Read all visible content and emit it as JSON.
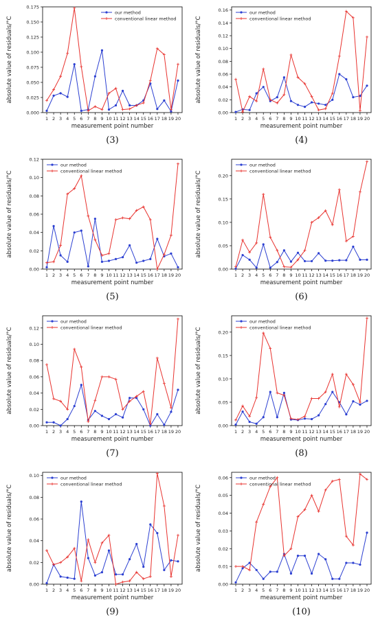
{
  "colors": {
    "our": "#2b3fd1",
    "conv": "#e8322e"
  },
  "chart_data": [
    {
      "type": "line",
      "caption": "(3)",
      "xlabel": "measurement point number",
      "ylabel": "absolute value of residuals/°C",
      "x": [
        1,
        2,
        3,
        4,
        5,
        6,
        7,
        8,
        9,
        10,
        11,
        12,
        13,
        14,
        15,
        16,
        17,
        18,
        19,
        20
      ],
      "ylim": [
        0,
        0.175
      ],
      "yticks": [
        0.0,
        0.025,
        0.05,
        0.075,
        0.1,
        0.125,
        0.15,
        0.175
      ],
      "ytick_labels": [
        "0.000",
        "0.025",
        "0.050",
        "0.075",
        "0.100",
        "0.125",
        "0.150",
        "0.175"
      ],
      "legend": "top-right",
      "series": [
        {
          "name": "our method",
          "key": "our",
          "marker": "circle",
          "values": [
            0.003,
            0.028,
            0.032,
            0.026,
            0.08,
            0.003,
            0.005,
            0.06,
            0.103,
            0.005,
            0.012,
            0.036,
            0.012,
            0.012,
            0.02,
            0.048,
            0.006,
            0.02,
            0.002,
            0.053
          ]
        },
        {
          "name": "conventional linear method",
          "key": "conv",
          "marker": "plus",
          "values": [
            0.02,
            0.038,
            0.06,
            0.098,
            0.173,
            0.076,
            0.003,
            0.01,
            0.005,
            0.032,
            0.04,
            0.005,
            0.006,
            0.012,
            0.016,
            0.053,
            0.106,
            0.096,
            0.005,
            0.08
          ]
        }
      ]
    },
    {
      "type": "line",
      "caption": "(4)",
      "xlabel": "measurement point number",
      "ylabel": "absolute value of residuals/°C",
      "x": [
        1,
        2,
        3,
        4,
        5,
        6,
        7,
        8,
        9,
        10,
        11,
        12,
        13,
        14,
        15,
        16,
        17,
        18,
        19,
        20
      ],
      "ylim": [
        0,
        0.165
      ],
      "yticks": [
        0.0,
        0.02,
        0.04,
        0.06,
        0.08,
        0.1,
        0.12,
        0.14,
        0.16
      ],
      "ytick_labels": [
        "0.00",
        "0.02",
        "0.04",
        "0.06",
        "0.08",
        "0.10",
        "0.12",
        "0.14",
        "0.16"
      ],
      "legend": "top-left",
      "series": [
        {
          "name": "our method",
          "key": "our",
          "marker": "circle",
          "values": [
            0.001,
            0.005,
            0.004,
            0.03,
            0.04,
            0.018,
            0.024,
            0.055,
            0.018,
            0.012,
            0.009,
            0.016,
            0.014,
            0.012,
            0.02,
            0.06,
            0.052,
            0.024,
            0.026,
            0.042
          ]
        },
        {
          "name": "conventional linear method",
          "key": "conv",
          "marker": "plus",
          "values": [
            0.052,
            0.001,
            0.025,
            0.018,
            0.068,
            0.02,
            0.015,
            0.028,
            0.09,
            0.055,
            0.045,
            0.025,
            0.004,
            0.006,
            0.03,
            0.088,
            0.158,
            0.148,
            0.003,
            0.118
          ]
        }
      ]
    },
    {
      "type": "line",
      "caption": "(5)",
      "xlabel": "measurement point number",
      "ylabel": "absolute value of residuals/°C",
      "x": [
        1,
        2,
        3,
        4,
        5,
        6,
        7,
        8,
        9,
        10,
        11,
        12,
        13,
        14,
        15,
        16,
        17,
        18,
        19,
        20
      ],
      "ylim": [
        0,
        0.12
      ],
      "yticks": [
        0.0,
        0.02,
        0.04,
        0.06,
        0.08,
        0.1,
        0.12
      ],
      "ytick_labels": [
        "0.00",
        "0.02",
        "0.04",
        "0.06",
        "0.08",
        "0.10",
        "0.12"
      ],
      "legend": "top-left",
      "series": [
        {
          "name": "our method",
          "key": "our",
          "marker": "circle",
          "values": [
            0.002,
            0.047,
            0.015,
            0.008,
            0.04,
            0.042,
            0.003,
            0.055,
            0.008,
            0.009,
            0.011,
            0.013,
            0.026,
            0.007,
            0.009,
            0.011,
            0.033,
            0.014,
            0.017,
            0.002
          ]
        },
        {
          "name": "conventional linear method",
          "key": "conv",
          "marker": "plus",
          "values": [
            0.007,
            0.008,
            0.026,
            0.082,
            0.088,
            0.102,
            0.058,
            0.032,
            0.015,
            0.017,
            0.054,
            0.056,
            0.055,
            0.064,
            0.068,
            0.054,
            0.0,
            0.016,
            0.037,
            0.115
          ]
        }
      ]
    },
    {
      "type": "line",
      "caption": "(6)",
      "xlabel": "measurement point number",
      "ylabel": "absolute value of residuals/°C",
      "x": [
        1,
        2,
        3,
        4,
        5,
        6,
        7,
        8,
        9,
        10,
        11,
        12,
        13,
        14,
        15,
        16,
        17,
        18,
        19,
        20
      ],
      "ylim": [
        0,
        0.235
      ],
      "yticks": [
        0.0,
        0.05,
        0.1,
        0.15,
        0.2
      ],
      "ytick_labels": [
        "0.00",
        "0.05",
        "0.10",
        "0.15",
        "0.20"
      ],
      "legend": "top-left",
      "series": [
        {
          "name": "our method",
          "key": "our",
          "marker": "circle",
          "values": [
            0.001,
            0.03,
            0.02,
            0.003,
            0.053,
            0.003,
            0.015,
            0.04,
            0.016,
            0.035,
            0.017,
            0.017,
            0.034,
            0.018,
            0.018,
            0.019,
            0.019,
            0.048,
            0.02,
            0.02
          ]
        },
        {
          "name": "conventional linear method",
          "key": "conv",
          "marker": "plus",
          "values": [
            0.005,
            0.062,
            0.036,
            0.056,
            0.16,
            0.068,
            0.04,
            0.005,
            0.004,
            0.02,
            0.04,
            0.1,
            0.11,
            0.125,
            0.095,
            0.17,
            0.06,
            0.07,
            0.165,
            0.23
          ]
        }
      ]
    },
    {
      "type": "line",
      "caption": "(7)",
      "xlabel": "measurement point number",
      "ylabel": "absolute value of residuals/°C",
      "x": [
        1,
        2,
        3,
        4,
        5,
        6,
        7,
        8,
        9,
        10,
        11,
        12,
        13,
        14,
        15,
        16,
        17,
        18,
        19,
        20
      ],
      "ylim": [
        0,
        0.135
      ],
      "yticks": [
        0.0,
        0.02,
        0.04,
        0.06,
        0.08,
        0.1,
        0.12
      ],
      "ytick_labels": [
        "0.00",
        "0.02",
        "0.04",
        "0.06",
        "0.08",
        "0.10",
        "0.12"
      ],
      "legend": "top-left",
      "series": [
        {
          "name": "our method",
          "key": "our",
          "marker": "circle",
          "values": [
            0.004,
            0.004,
            0.0,
            0.008,
            0.024,
            0.05,
            0.007,
            0.018,
            0.012,
            0.008,
            0.014,
            0.01,
            0.034,
            0.034,
            0.02,
            0.0,
            0.014,
            0.001,
            0.017,
            0.044
          ]
        },
        {
          "name": "conventional linear method",
          "key": "conv",
          "marker": "plus",
          "values": [
            0.075,
            0.033,
            0.03,
            0.02,
            0.094,
            0.072,
            0.005,
            0.031,
            0.06,
            0.06,
            0.057,
            0.02,
            0.03,
            0.036,
            0.042,
            0.002,
            0.083,
            0.052,
            0.022,
            0.131
          ]
        }
      ]
    },
    {
      "type": "line",
      "caption": "(8)",
      "xlabel": "measurement point number",
      "ylabel": "absolute value of residuals/°C",
      "x": [
        1,
        2,
        3,
        4,
        5,
        6,
        7,
        8,
        9,
        10,
        11,
        12,
        13,
        14,
        15,
        16,
        17,
        18,
        19,
        20
      ],
      "ylim": [
        0,
        0.235
      ],
      "yticks": [
        0.0,
        0.05,
        0.1,
        0.15,
        0.2
      ],
      "ytick_labels": [
        "0.00",
        "0.05",
        "0.10",
        "0.15",
        "0.20"
      ],
      "legend": "top-left",
      "series": [
        {
          "name": "our method",
          "key": "our",
          "marker": "circle",
          "values": [
            0.002,
            0.03,
            0.008,
            0.004,
            0.018,
            0.072,
            0.018,
            0.07,
            0.013,
            0.012,
            0.015,
            0.014,
            0.022,
            0.046,
            0.072,
            0.05,
            0.024,
            0.052,
            0.045,
            0.053
          ]
        },
        {
          "name": "conventional linear method",
          "key": "conv",
          "marker": "plus",
          "values": [
            0.012,
            0.042,
            0.02,
            0.06,
            0.198,
            0.165,
            0.07,
            0.065,
            0.015,
            0.013,
            0.02,
            0.058,
            0.058,
            0.072,
            0.11,
            0.04,
            0.11,
            0.088,
            0.05,
            0.23
          ]
        }
      ]
    },
    {
      "type": "line",
      "caption": "(9)",
      "xlabel": "measurement point number",
      "ylabel": "absolute value of residuals/°C",
      "x": [
        1,
        2,
        3,
        4,
        5,
        6,
        7,
        8,
        9,
        10,
        11,
        12,
        13,
        14,
        15,
        16,
        17,
        18,
        19,
        20
      ],
      "ylim": [
        0,
        0.103
      ],
      "yticks": [
        0.0,
        0.02,
        0.04,
        0.06,
        0.08,
        0.1
      ],
      "ytick_labels": [
        "0.00",
        "0.02",
        "0.04",
        "0.06",
        "0.08",
        "0.10"
      ],
      "legend": "top-left",
      "series": [
        {
          "name": "our method",
          "key": "our",
          "marker": "circle",
          "values": [
            0.001,
            0.018,
            0.007,
            0.006,
            0.005,
            0.076,
            0.024,
            0.008,
            0.011,
            0.031,
            0.009,
            0.009,
            0.023,
            0.037,
            0.016,
            0.055,
            0.047,
            0.013,
            0.022,
            0.021
          ]
        },
        {
          "name": "conventional linear method",
          "key": "conv",
          "marker": "plus",
          "values": [
            0.031,
            0.018,
            0.02,
            0.025,
            0.033,
            0.003,
            0.041,
            0.02,
            0.038,
            0.045,
            0.0,
            0.002,
            0.003,
            0.011,
            0.005,
            0.007,
            0.102,
            0.072,
            0.007,
            0.045
          ]
        }
      ]
    },
    {
      "type": "line",
      "caption": "(10)",
      "xlabel": "measurement point number",
      "ylabel": "absolute value of residuals/°C",
      "x": [
        1,
        2,
        3,
        4,
        5,
        6,
        7,
        8,
        9,
        10,
        11,
        12,
        13,
        14,
        15,
        16,
        17,
        18,
        19,
        20
      ],
      "ylim": [
        0,
        0.063
      ],
      "yticks": [
        0.0,
        0.01,
        0.02,
        0.03,
        0.04,
        0.05,
        0.06
      ],
      "ytick_labels": [
        "0.00",
        "0.01",
        "0.02",
        "0.03",
        "0.04",
        "0.05",
        "0.06"
      ],
      "legend": "top-left",
      "series": [
        {
          "name": "our method",
          "key": "our",
          "marker": "circle",
          "values": [
            0.001,
            0.009,
            0.012,
            0.008,
            0.003,
            0.007,
            0.007,
            0.017,
            0.006,
            0.016,
            0.016,
            0.006,
            0.017,
            0.014,
            0.003,
            0.003,
            0.012,
            0.012,
            0.011,
            0.029
          ]
        },
        {
          "name": "conventional linear method",
          "key": "conv",
          "marker": "plus",
          "values": [
            0.01,
            0.01,
            0.008,
            0.035,
            0.045,
            0.055,
            0.06,
            0.016,
            0.02,
            0.038,
            0.042,
            0.05,
            0.041,
            0.053,
            0.058,
            0.059,
            0.027,
            0.022,
            0.062,
            0.059
          ]
        }
      ]
    }
  ]
}
